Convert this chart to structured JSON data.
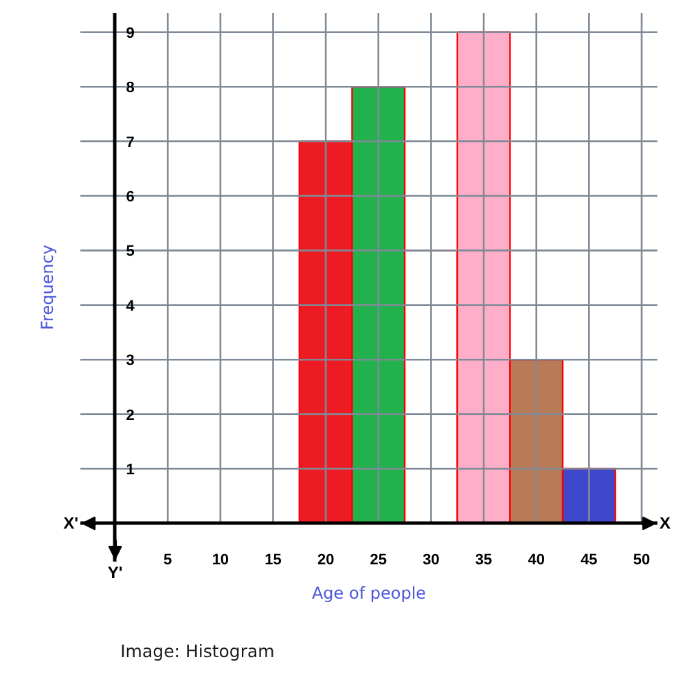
{
  "chart_data": {
    "type": "histogram",
    "xlabel": "Age of people",
    "ylabel": "Frequency",
    "bins": [
      17.5,
      22.5,
      27.5,
      32.5,
      37.5,
      42.5,
      47.5
    ],
    "values": [
      7,
      8,
      5,
      9,
      3,
      1
    ],
    "colors": [
      "#ed1c24",
      "#22b14c",
      "#ffffff",
      "#ffaec9",
      "#b97a57",
      "#3f48cc"
    ],
    "xlim": [
      -3.3,
      51.5
    ],
    "ylim": [
      -0.7,
      9.35
    ],
    "xticks": [
      5,
      10,
      15,
      20,
      25,
      30,
      35,
      40,
      45,
      50
    ],
    "yticks": [
      1,
      2,
      3,
      4,
      5,
      6,
      7,
      8,
      9
    ],
    "grid": true,
    "annotations": [
      "X'",
      "X",
      "Y'",
      "Image: Histogram"
    ]
  }
}
